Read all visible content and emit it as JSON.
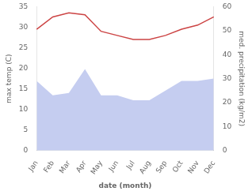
{
  "chart_data": {
    "type": "line",
    "categories": [
      "Jan",
      "Feb",
      "Mar",
      "Apr",
      "May",
      "Jun",
      "Jul",
      "Aug",
      "Sep",
      "Oct",
      "Nov",
      "Dec"
    ],
    "xlabel": "date (month)",
    "ylabel": "max temp (C)",
    "y2label": "med. precipitation (kg/m2)",
    "ylim": [
      0,
      35
    ],
    "yticks": [
      0,
      5,
      10,
      15,
      20,
      25,
      30,
      35
    ],
    "y2lim": [
      0,
      60
    ],
    "y2ticks": [
      0,
      10,
      20,
      30,
      40,
      50,
      60
    ],
    "grid": false,
    "series": [
      {
        "type": "area",
        "axis": "y2",
        "color": "#c5cdf0",
        "values": [
          29,
          23,
          24,
          34,
          23,
          23,
          21,
          21,
          25,
          29,
          29,
          30
        ]
      },
      {
        "type": "line",
        "color": "#cc4444",
        "values": [
          29.5,
          32.5,
          33.5,
          33.0,
          29.0,
          28.0,
          27.0,
          27.0,
          28.0,
          29.5,
          30.5,
          32.5
        ]
      }
    ]
  }
}
